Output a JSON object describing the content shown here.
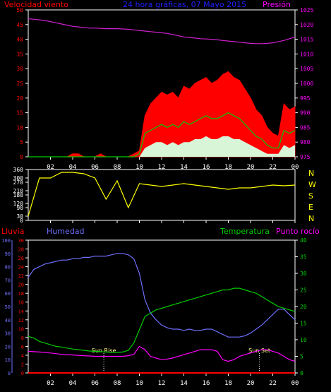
{
  "header": {
    "title": "24 hora gráficas, 07 Mayo 2015",
    "wind_label": "Velocidad viento",
    "pressure_label": "Presión"
  },
  "bottom": {
    "rain_label": "Lluvia",
    "humidity_label": "Humedad",
    "temperature_label": "Temperatura",
    "dewpoint_label": "Punto rocío",
    "sunrise_label": "Sun Rise",
    "sunset_label": "Sun Set"
  },
  "compass": [
    "N",
    "W",
    "S",
    "E",
    "N"
  ],
  "x_ticks": [
    "02",
    "04",
    "06",
    "08",
    "10",
    "12",
    "14",
    "16",
    "18",
    "20",
    "22",
    "00"
  ],
  "colors": {
    "wind_gust": "#ff0000",
    "wind_avg": "#00cc00",
    "wind_min": "#d8f5d8",
    "pressure": "#d020d0",
    "direction": "#ffff00",
    "humidity": "#7070ff",
    "temperature": "#00cc00",
    "dewpoint": "#ff00ff",
    "rain": "#ff0000"
  },
  "chart_data": [
    {
      "type": "line",
      "name": "wind-and-pressure",
      "x_hours": [
        0,
        0.5,
        1,
        1.5,
        2,
        2.5,
        3,
        3.5,
        4,
        4.5,
        5,
        5.5,
        6,
        6.5,
        7,
        7.5,
        8,
        8.5,
        9,
        9.5,
        10,
        10.5,
        11,
        11.5,
        12,
        12.5,
        13,
        13.5,
        14,
        14.5,
        15,
        15.5,
        16,
        16.5,
        17,
        17.5,
        18,
        18.5,
        19,
        19.5,
        20,
        20.5,
        21,
        21.5,
        22,
        22.5,
        23,
        23.5,
        24
      ],
      "x_ticks": [
        "02",
        "04",
        "06",
        "08",
        "10",
        "12",
        "14",
        "16",
        "18",
        "20",
        "22",
        "00"
      ],
      "y_left": {
        "label": "Velocidad viento",
        "range": [
          0,
          50
        ],
        "ticks": [
          0,
          5,
          10,
          15,
          20,
          25,
          30,
          35,
          40,
          45,
          50
        ]
      },
      "y_right": {
        "label": "Presión",
        "range": [
          975,
          1025
        ],
        "ticks": [
          975,
          980,
          985,
          990,
          995,
          1000,
          1005,
          1010,
          1015,
          1020,
          1025
        ]
      },
      "series": [
        {
          "name": "gust",
          "axis": "left",
          "values": [
            0,
            0,
            0,
            0,
            0,
            0,
            0,
            0,
            1,
            1,
            0,
            0,
            0,
            1,
            0,
            0,
            0,
            0,
            0,
            1,
            2,
            14,
            18,
            20,
            22,
            21,
            22,
            20,
            24,
            23,
            25,
            26,
            27,
            25,
            26,
            28,
            29,
            27,
            26,
            23,
            20,
            16,
            14,
            10,
            8,
            7,
            18,
            16,
            17
          ]
        },
        {
          "name": "average",
          "axis": "left",
          "values": [
            0,
            0,
            0,
            0,
            0,
            0,
            0,
            0,
            0,
            0,
            0,
            0,
            0,
            0,
            0,
            0,
            0,
            0,
            0,
            0,
            1,
            8,
            9,
            10,
            11,
            10,
            11,
            10,
            12,
            11,
            12,
            13,
            14,
            13,
            13,
            14,
            15,
            14,
            13,
            11,
            9,
            7,
            6,
            4,
            3,
            3,
            9,
            8,
            9
          ]
        },
        {
          "name": "lull",
          "axis": "left",
          "values": [
            0,
            0,
            0,
            0,
            0,
            0,
            0,
            0,
            0,
            0,
            0,
            0,
            0,
            0,
            0,
            0,
            0,
            0,
            0,
            0,
            0,
            3,
            4,
            5,
            5,
            4,
            5,
            4,
            5,
            5,
            6,
            6,
            7,
            6,
            6,
            7,
            7,
            6,
            6,
            5,
            4,
            3,
            2,
            1,
            1,
            1,
            4,
            3,
            4
          ]
        },
        {
          "name": "pressure",
          "axis": "right",
          "values": [
            1022,
            1021.8,
            1021.6,
            1021.4,
            1021,
            1020.6,
            1020.2,
            1019.8,
            1019.4,
            1019.2,
            1019,
            1018.8,
            1018.8,
            1018.7,
            1018.6,
            1018.6,
            1018.6,
            1018.5,
            1018.4,
            1018.2,
            1018,
            1017.8,
            1017.6,
            1017.4,
            1017.2,
            1017,
            1016.6,
            1016.2,
            1015.8,
            1015.6,
            1015.4,
            1015.2,
            1015.1,
            1015,
            1014.8,
            1014.6,
            1014.4,
            1014.2,
            1014,
            1013.8,
            1013.6,
            1013.5,
            1013.5,
            1013.6,
            1013.8,
            1014.2,
            1014.6,
            1015.2,
            1015.8
          ]
        }
      ]
    },
    {
      "type": "line",
      "name": "wind-direction",
      "x_hours": [
        0,
        1,
        2,
        3,
        4,
        5,
        6,
        7,
        8,
        9,
        10,
        11,
        12,
        13,
        14,
        15,
        16,
        17,
        18,
        19,
        20,
        21,
        22,
        23,
        24
      ],
      "y_left": {
        "range": [
          0,
          360
        ],
        "ticks": [
          0,
          30,
          90,
          120,
          180,
          210,
          270,
          300,
          360
        ]
      },
      "y_right": {
        "labels": [
          "N",
          "W",
          "S",
          "E",
          "N"
        ]
      },
      "series": [
        {
          "name": "direction",
          "values": [
            30,
            300,
            300,
            340,
            340,
            330,
            300,
            150,
            280,
            90,
            260,
            250,
            240,
            250,
            260,
            250,
            240,
            230,
            220,
            230,
            230,
            240,
            250,
            245,
            250
          ]
        }
      ]
    },
    {
      "type": "line",
      "name": "humidity-temperature",
      "x_hours": [
        0,
        0.5,
        1,
        1.5,
        2,
        2.5,
        3,
        3.5,
        4,
        4.5,
        5,
        5.5,
        6,
        6.5,
        7,
        7.5,
        8,
        8.5,
        9,
        9.5,
        10,
        10.5,
        11,
        11.5,
        12,
        12.5,
        13,
        13.5,
        14,
        14.5,
        15,
        15.5,
        16,
        16.5,
        17,
        17.5,
        18,
        18.5,
        19,
        19.5,
        20,
        20.5,
        21,
        21.5,
        22,
        22.5,
        23,
        23.5,
        24
      ],
      "x_ticks": [
        "02",
        "04",
        "06",
        "08",
        "10",
        "12",
        "14",
        "16",
        "18",
        "20",
        "22",
        "00"
      ],
      "y_left_outer": {
        "label": "Humedad",
        "range": [
          0,
          100
        ],
        "ticks": [
          0,
          10,
          20,
          30,
          40,
          50,
          60,
          70,
          80,
          90,
          100
        ]
      },
      "y_left_inner": {
        "label": "Lluvia",
        "range": [
          0,
          30
        ],
        "ticks": [
          0,
          2,
          4,
          6,
          8,
          10,
          12,
          14,
          16,
          18,
          20,
          22,
          24,
          26,
          28,
          30
        ]
      },
      "y_right": {
        "label": "Temperatura / Punto rocío",
        "range": [
          0,
          40
        ],
        "ticks": [
          0,
          5,
          10,
          15,
          20,
          25,
          30,
          35,
          40
        ]
      },
      "markers": [
        {
          "label": "Sun Rise",
          "x_hour": 6.8
        },
        {
          "label": "Sun Set",
          "x_hour": 20.8
        }
      ],
      "series": [
        {
          "name": "humidity",
          "axis": "left_outer",
          "values": [
            72,
            78,
            80,
            82,
            83,
            84,
            85,
            85,
            86,
            86,
            87,
            87,
            88,
            88,
            88,
            89,
            90,
            90,
            89,
            86,
            75,
            55,
            45,
            40,
            36,
            34,
            33,
            33,
            32,
            33,
            32,
            32,
            33,
            33,
            31,
            29,
            27,
            27,
            27,
            28,
            30,
            33,
            36,
            40,
            44,
            48,
            48,
            44,
            40
          ]
        },
        {
          "name": "temperature",
          "axis": "right",
          "values": [
            11,
            10.5,
            9.5,
            9,
            8.5,
            8,
            7.8,
            7.5,
            7.2,
            7,
            6.8,
            6.6,
            6.5,
            6.4,
            6.3,
            6.2,
            6.2,
            6.3,
            6.8,
            9,
            13,
            17,
            18,
            19,
            19.5,
            20,
            20.5,
            21,
            21.5,
            22,
            22.5,
            23,
            23.5,
            24,
            24.5,
            25,
            25,
            25.5,
            25.5,
            25,
            24.5,
            24,
            23,
            22,
            21,
            20,
            19.5,
            19,
            18.5
          ]
        },
        {
          "name": "dewpoint",
          "axis": "right",
          "values": [
            6.5,
            6.4,
            6.3,
            6.2,
            6,
            5.8,
            5.6,
            5.5,
            5.4,
            5.3,
            5.2,
            5.1,
            5,
            5,
            5,
            5,
            5,
            5,
            5.2,
            5.6,
            8,
            7,
            5,
            4.5,
            4,
            4.2,
            4.5,
            5,
            5.5,
            6,
            6.5,
            7,
            7,
            7,
            6.5,
            4,
            3.5,
            4,
            5,
            5.5,
            6,
            6.5,
            7,
            7,
            6.5,
            6,
            5,
            4,
            3.5
          ]
        },
        {
          "name": "rain",
          "axis": "left_inner",
          "values": [
            0,
            0,
            0,
            0,
            0,
            0,
            0,
            0,
            0,
            0,
            0,
            0,
            0,
            0,
            0,
            0,
            0,
            0,
            0,
            0,
            0,
            0,
            0,
            0,
            0,
            0,
            0,
            0,
            0,
            0,
            0,
            0,
            0,
            0,
            0,
            0,
            0,
            0,
            0,
            0,
            0,
            0,
            0,
            0,
            0,
            0,
            0,
            0,
            0
          ]
        }
      ]
    }
  ]
}
